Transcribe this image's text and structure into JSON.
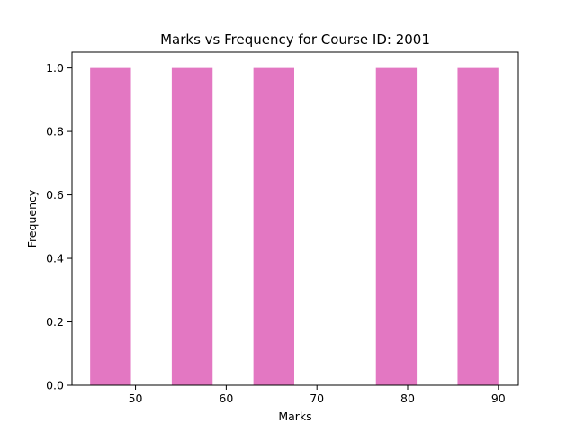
{
  "chart_data": {
    "type": "bar",
    "title": "Marks vs Frequency for Course ID:  2001",
    "xlabel": "Marks",
    "ylabel": "Frequency",
    "xlim": [
      43,
      92.2
    ],
    "ylim": [
      0,
      1.05
    ],
    "xticks": [
      50,
      60,
      70,
      80,
      90
    ],
    "yticks": [
      0.0,
      0.2,
      0.4,
      0.6,
      0.8,
      1.0
    ],
    "ytick_labels": [
      "0.0",
      "0.2",
      "0.4",
      "0.6",
      "0.8",
      "1.0"
    ],
    "bins": [
      {
        "start": 45.0,
        "end": 49.5,
        "value": 1
      },
      {
        "start": 54.0,
        "end": 58.5,
        "value": 1
      },
      {
        "start": 63.0,
        "end": 67.5,
        "value": 1
      },
      {
        "start": 76.5,
        "end": 81.0,
        "value": 1
      },
      {
        "start": 85.5,
        "end": 90.0,
        "value": 1
      }
    ],
    "bar_color": "#e377c2",
    "grid": false,
    "legend": "none"
  }
}
